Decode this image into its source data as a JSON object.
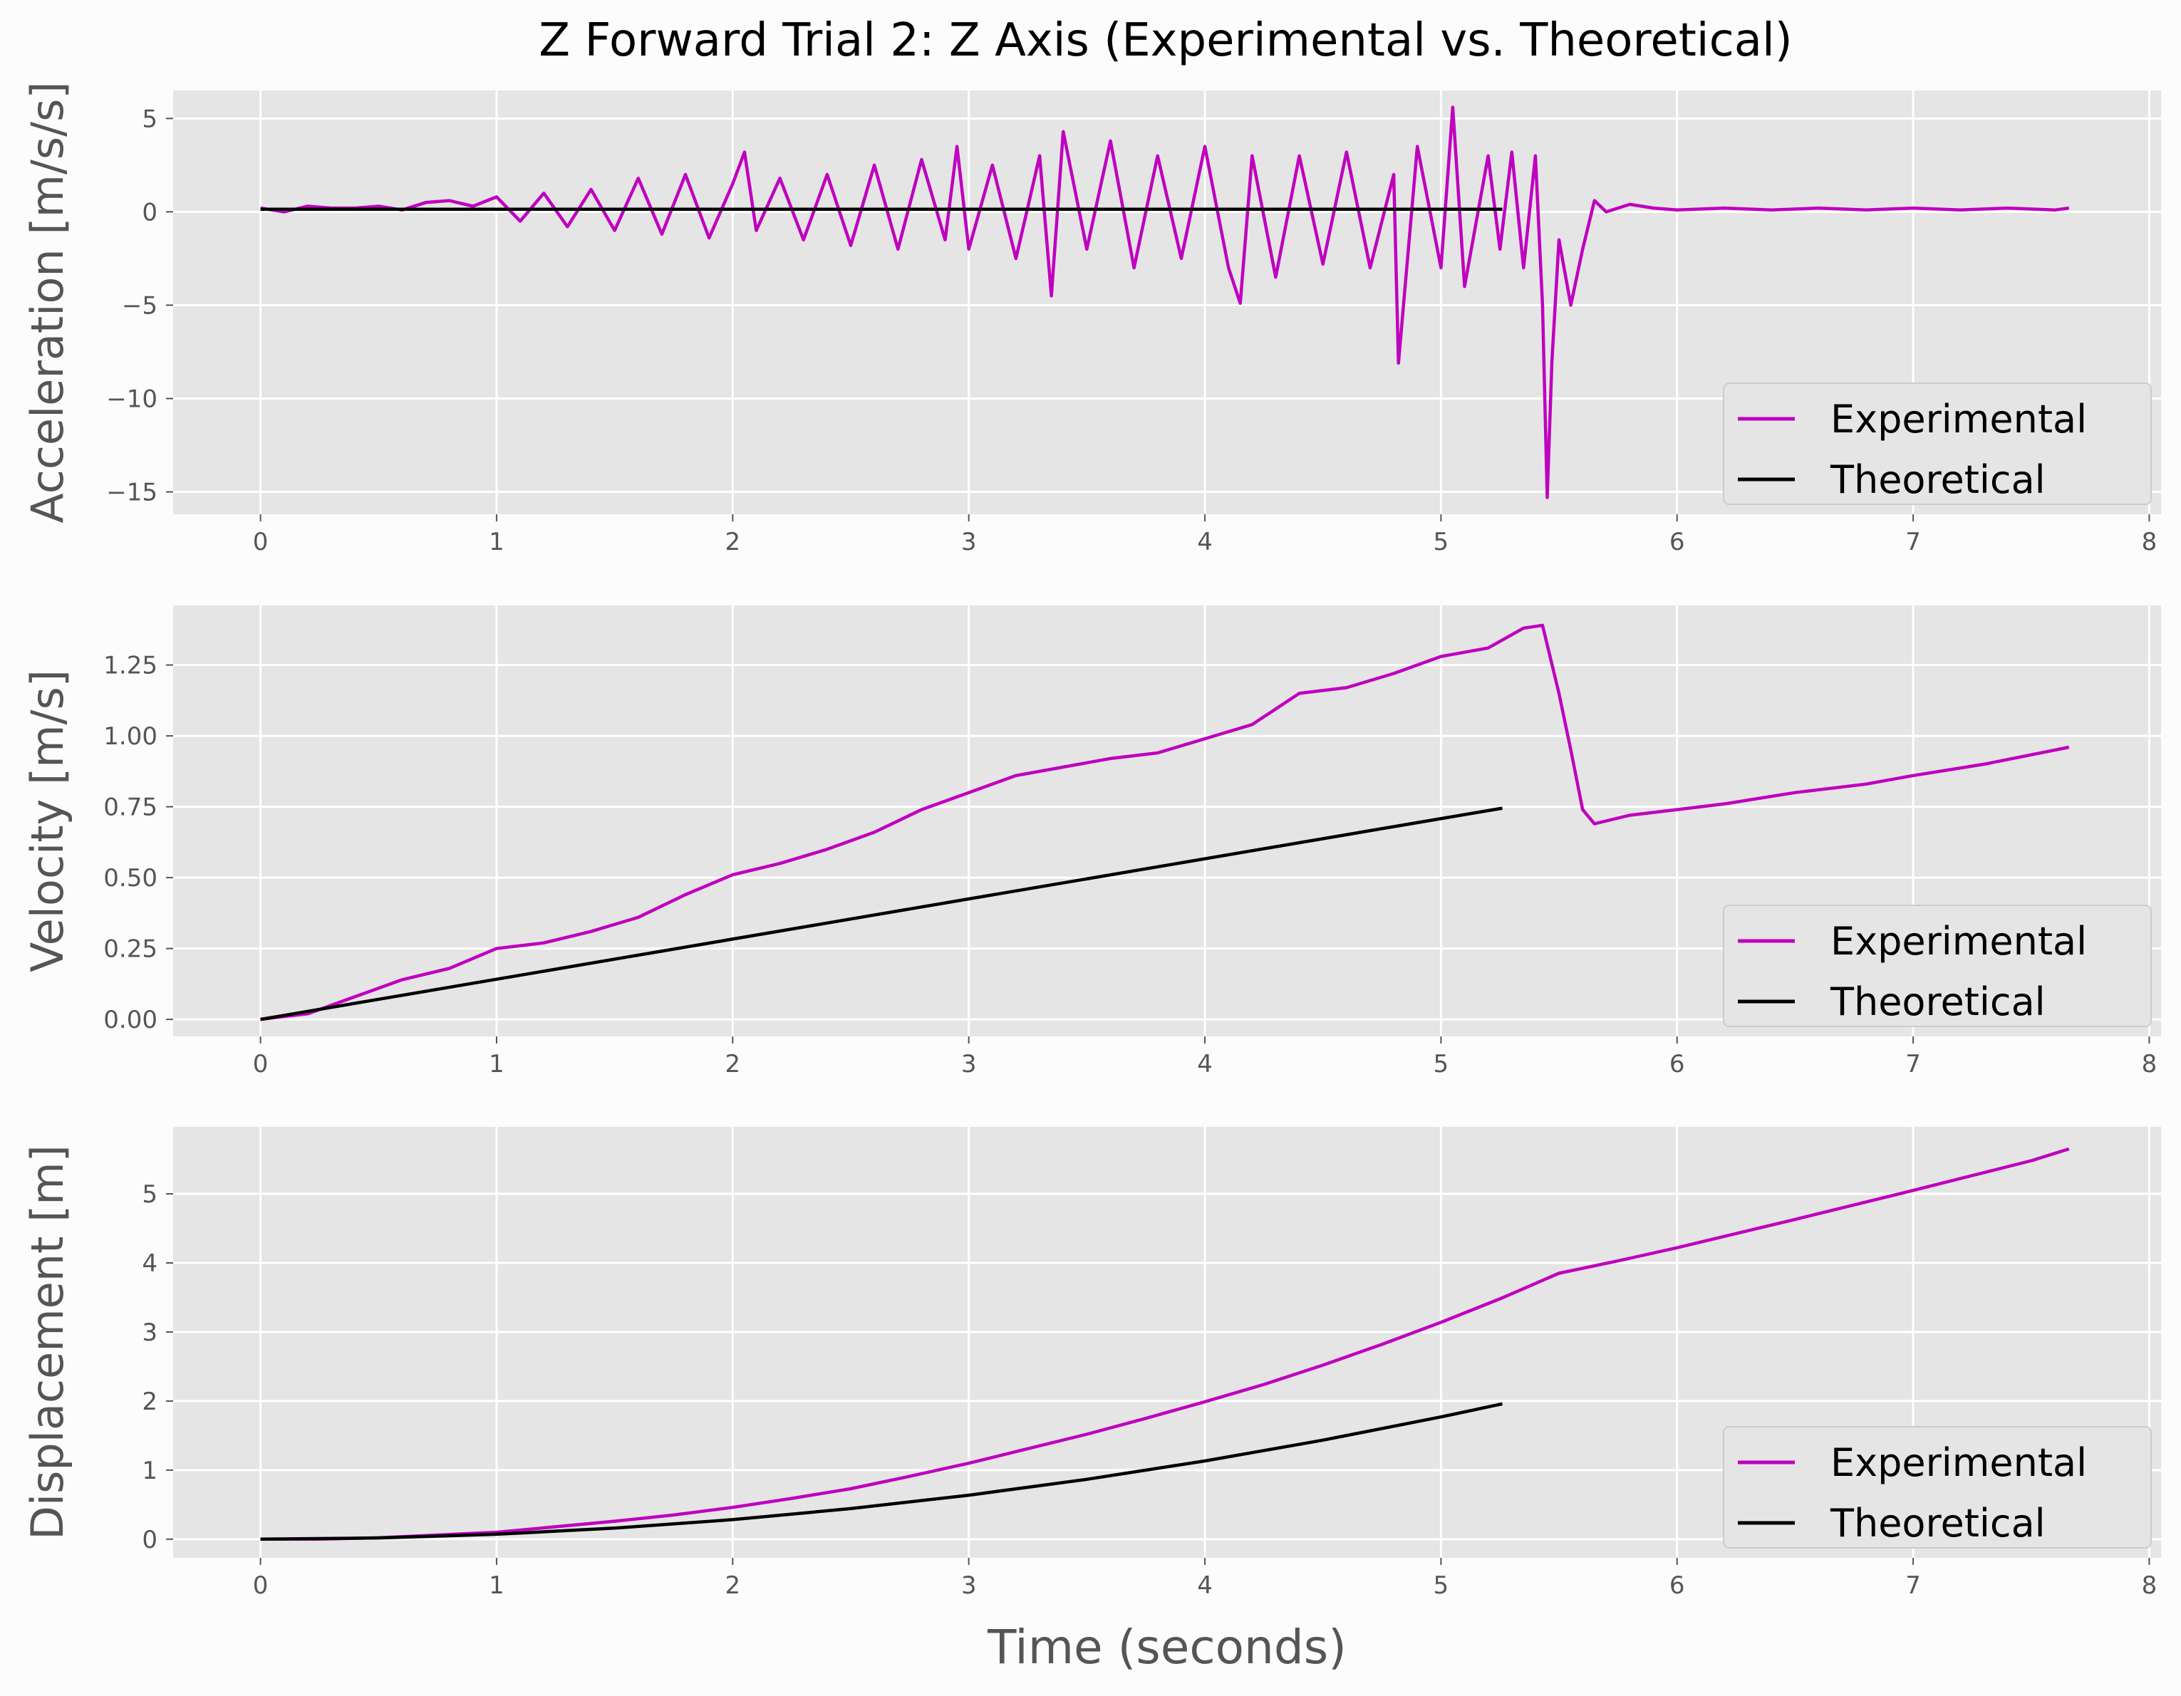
{
  "title": "Z Forward Trial 2: Z Axis (Experimental vs. Theoretical)",
  "colors": {
    "experimental": "#bf00bf",
    "theoretical": "#000000",
    "panel_bg": "#e5e5e5",
    "grid": "#ffffff",
    "figure_bg": "#fcfcfc"
  },
  "legend": {
    "items": [
      "Experimental",
      "Theoretical"
    ],
    "placement": "lower right"
  },
  "chart_data": [
    {
      "type": "line",
      "ylabel": "Acceleration [m/s/s]",
      "xlabel": "",
      "xlim": [
        -0.37,
        8.05
      ],
      "ylim": [
        -16.2,
        6.5
      ],
      "xticks": [
        0,
        1,
        2,
        3,
        4,
        5,
        6,
        7,
        8
      ],
      "yticks": [
        5,
        0,
        -5,
        -10,
        -15
      ],
      "ytick_labels": [
        "5",
        "0",
        "−5",
        "−10",
        "−15"
      ],
      "grid": true,
      "series": [
        {
          "name": "Experimental",
          "x": [
            0,
            0.1,
            0.2,
            0.3,
            0.4,
            0.5,
            0.6,
            0.7,
            0.8,
            0.9,
            1.0,
            1.1,
            1.2,
            1.3,
            1.4,
            1.5,
            1.6,
            1.7,
            1.8,
            1.9,
            2.0,
            2.05,
            2.1,
            2.2,
            2.3,
            2.4,
            2.5,
            2.6,
            2.7,
            2.8,
            2.9,
            2.95,
            3.0,
            3.1,
            3.2,
            3.3,
            3.35,
            3.4,
            3.5,
            3.6,
            3.7,
            3.8,
            3.9,
            4.0,
            4.1,
            4.15,
            4.2,
            4.3,
            4.4,
            4.5,
            4.6,
            4.7,
            4.8,
            4.82,
            4.9,
            5.0,
            5.05,
            5.1,
            5.2,
            5.25,
            5.3,
            5.35,
            5.4,
            5.43,
            5.45,
            5.47,
            5.5,
            5.55,
            5.6,
            5.65,
            5.7,
            5.8,
            5.9,
            6.0,
            6.2,
            6.4,
            6.6,
            6.8,
            7.0,
            7.2,
            7.4,
            7.6,
            7.66
          ],
          "y": [
            0.2,
            0.0,
            0.3,
            0.2,
            0.2,
            0.3,
            0.1,
            0.5,
            0.6,
            0.3,
            0.8,
            -0.5,
            1.0,
            -0.8,
            1.2,
            -1.0,
            1.8,
            -1.2,
            2.0,
            -1.4,
            1.5,
            3.2,
            -1.0,
            1.8,
            -1.5,
            2.0,
            -1.8,
            2.5,
            -2.0,
            2.8,
            -1.5,
            3.5,
            -2.0,
            2.5,
            -2.5,
            3.0,
            -4.5,
            4.3,
            -2.0,
            3.8,
            -3.0,
            3.0,
            -2.5,
            3.5,
            -3.0,
            -4.9,
            3.0,
            -3.5,
            3.0,
            -2.8,
            3.2,
            -3.0,
            2.0,
            -8.1,
            3.5,
            -3.0,
            5.6,
            -4.0,
            3.0,
            -2.0,
            3.2,
            -3.0,
            3.0,
            -5.0,
            -15.3,
            -8.0,
            -1.5,
            -5.0,
            -2.0,
            0.6,
            0.0,
            0.4,
            0.2,
            0.1,
            0.2,
            0.1,
            0.2,
            0.1,
            0.2,
            0.1,
            0.2,
            0.1,
            0.2
          ]
        },
        {
          "name": "Theoretical",
          "x": [
            0,
            5.26
          ],
          "y": [
            0.14,
            0.14
          ]
        }
      ]
    },
    {
      "type": "line",
      "ylabel": "Velocity [m/s]",
      "xlabel": "",
      "xlim": [
        -0.37,
        8.05
      ],
      "ylim": [
        -0.06,
        1.46
      ],
      "xticks": [
        0,
        1,
        2,
        3,
        4,
        5,
        6,
        7,
        8
      ],
      "yticks": [
        0.0,
        0.25,
        0.5,
        0.75,
        1.0,
        1.25
      ],
      "ytick_labels": [
        "0.00",
        "0.25",
        "0.50",
        "0.75",
        "1.00",
        "1.25"
      ],
      "grid": true,
      "series": [
        {
          "name": "Experimental",
          "x": [
            0,
            0.2,
            0.4,
            0.6,
            0.8,
            1.0,
            1.2,
            1.4,
            1.6,
            1.8,
            2.0,
            2.2,
            2.4,
            2.6,
            2.8,
            3.0,
            3.2,
            3.4,
            3.6,
            3.8,
            4.0,
            4.2,
            4.4,
            4.6,
            4.8,
            5.0,
            5.2,
            5.35,
            5.43,
            5.5,
            5.55,
            5.6,
            5.65,
            5.8,
            6.0,
            6.2,
            6.5,
            6.8,
            7.0,
            7.3,
            7.66
          ],
          "y": [
            0.0,
            0.02,
            0.08,
            0.14,
            0.18,
            0.25,
            0.27,
            0.31,
            0.36,
            0.44,
            0.51,
            0.55,
            0.6,
            0.66,
            0.74,
            0.8,
            0.86,
            0.89,
            0.92,
            0.94,
            0.99,
            1.04,
            1.15,
            1.17,
            1.22,
            1.28,
            1.31,
            1.38,
            1.39,
            1.15,
            0.95,
            0.74,
            0.69,
            0.72,
            0.74,
            0.76,
            0.8,
            0.83,
            0.86,
            0.9,
            0.96
          ]
        },
        {
          "name": "Theoretical",
          "x": [
            0,
            5.26
          ],
          "y": [
            0.0,
            0.745
          ]
        }
      ]
    },
    {
      "type": "line",
      "ylabel": "Displacement [m]",
      "xlabel": "Time (seconds)",
      "xlim": [
        -0.37,
        8.05
      ],
      "ylim": [
        -0.27,
        5.97
      ],
      "xticks": [
        0,
        1,
        2,
        3,
        4,
        5,
        6,
        7,
        8
      ],
      "yticks": [
        0,
        1,
        2,
        3,
        4,
        5
      ],
      "ytick_labels": [
        "0",
        "1",
        "2",
        "3",
        "4",
        "5"
      ],
      "grid": true,
      "series": [
        {
          "name": "Experimental",
          "x": [
            0,
            0.25,
            0.5,
            0.75,
            1.0,
            1.25,
            1.5,
            1.75,
            2.0,
            2.25,
            2.5,
            2.75,
            3.0,
            3.25,
            3.5,
            3.75,
            4.0,
            4.25,
            4.5,
            4.75,
            5.0,
            5.25,
            5.5,
            5.75,
            6.0,
            6.5,
            7.0,
            7.5,
            7.66
          ],
          "y": [
            0.0,
            0.0,
            0.02,
            0.06,
            0.1,
            0.18,
            0.26,
            0.35,
            0.46,
            0.59,
            0.73,
            0.91,
            1.1,
            1.31,
            1.52,
            1.75,
            1.99,
            2.24,
            2.52,
            2.82,
            3.14,
            3.48,
            3.85,
            4.03,
            4.22,
            4.63,
            5.05,
            5.48,
            5.65
          ]
        },
        {
          "name": "Theoretical",
          "x": [
            0,
            0.5,
            1.0,
            1.5,
            2.0,
            2.5,
            3.0,
            3.5,
            4.0,
            4.5,
            5.0,
            5.26
          ],
          "y": [
            0.0,
            0.018,
            0.071,
            0.16,
            0.283,
            0.443,
            0.637,
            0.867,
            1.133,
            1.434,
            1.77,
            1.96
          ]
        }
      ]
    }
  ]
}
